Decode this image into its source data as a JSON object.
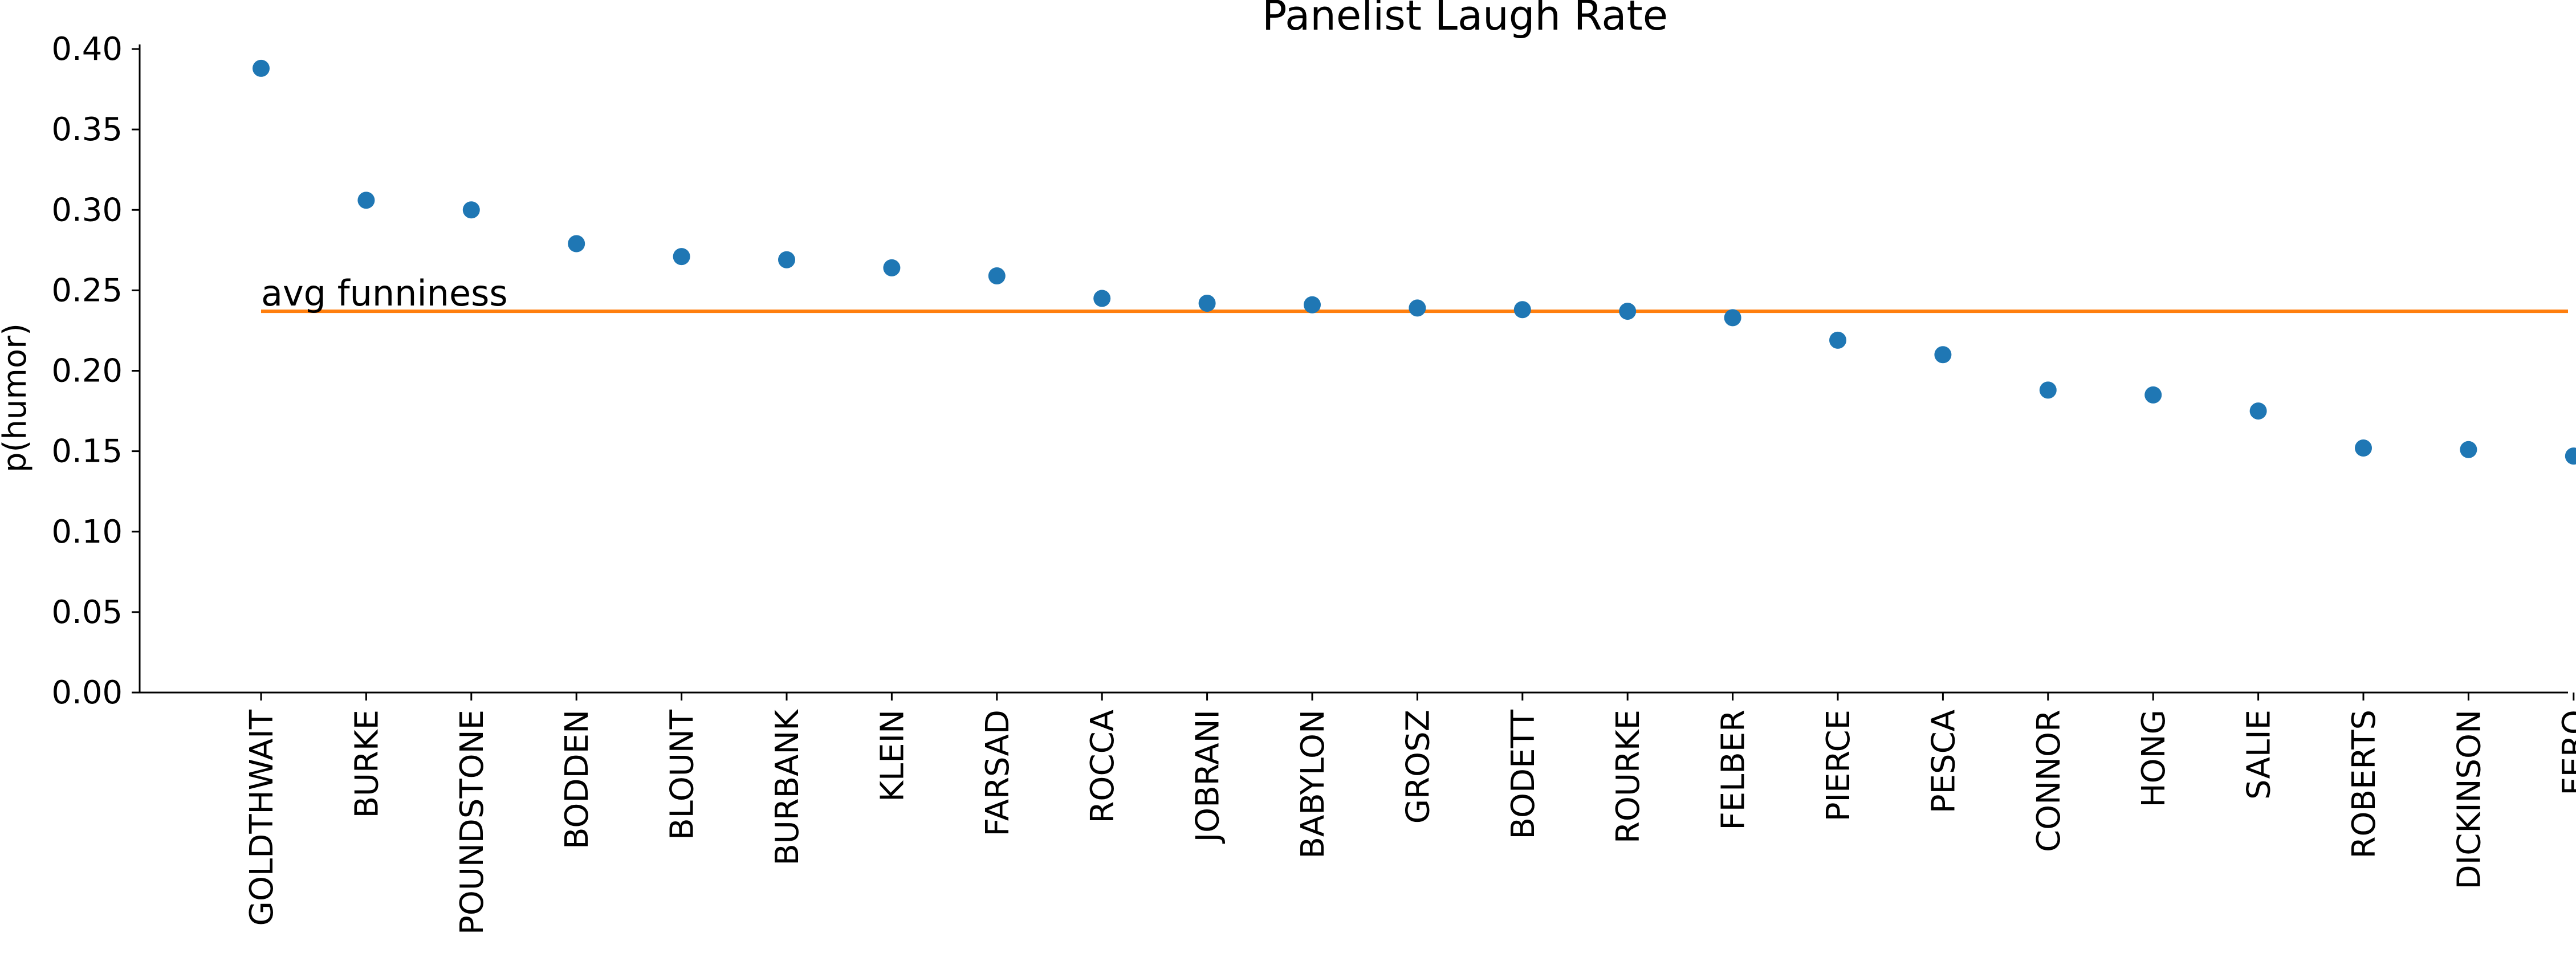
{
  "chart_data": {
    "type": "scatter",
    "title": "Panelist Laugh Rate",
    "xlabel": "",
    "ylabel": "p(humor)",
    "ylim": [
      0.0,
      0.4
    ],
    "yticks": [
      "0.00",
      "0.05",
      "0.10",
      "0.15",
      "0.20",
      "0.25",
      "0.30",
      "0.35",
      "0.40"
    ],
    "grid": false,
    "categories": [
      "GOLDTHWAIT",
      "BURKE",
      "POUNDSTONE",
      "BODDEN",
      "BLOUNT",
      "BURBANK",
      "KLEIN",
      "FARSAD",
      "ROCCA",
      "JOBRANI",
      "BABYLON",
      "GROSZ",
      "BODETT",
      "ROURKE",
      "FELBER",
      "PIERCE",
      "PESCA",
      "CONNOR",
      "HONG",
      "SALIE",
      "ROBERTS",
      "DICKINSON",
      "FERO"
    ],
    "values": [
      0.388,
      0.306,
      0.3,
      0.279,
      0.271,
      0.269,
      0.264,
      0.259,
      0.245,
      0.242,
      0.241,
      0.239,
      0.238,
      0.237,
      0.233,
      0.219,
      0.21,
      0.188,
      0.185,
      0.175,
      0.152,
      0.151,
      0.147
    ],
    "reference_line": {
      "value": 0.237,
      "label": "avg funniness"
    },
    "colors": {
      "points": "#1f77b4",
      "reference_line": "#ff7f0e"
    }
  }
}
